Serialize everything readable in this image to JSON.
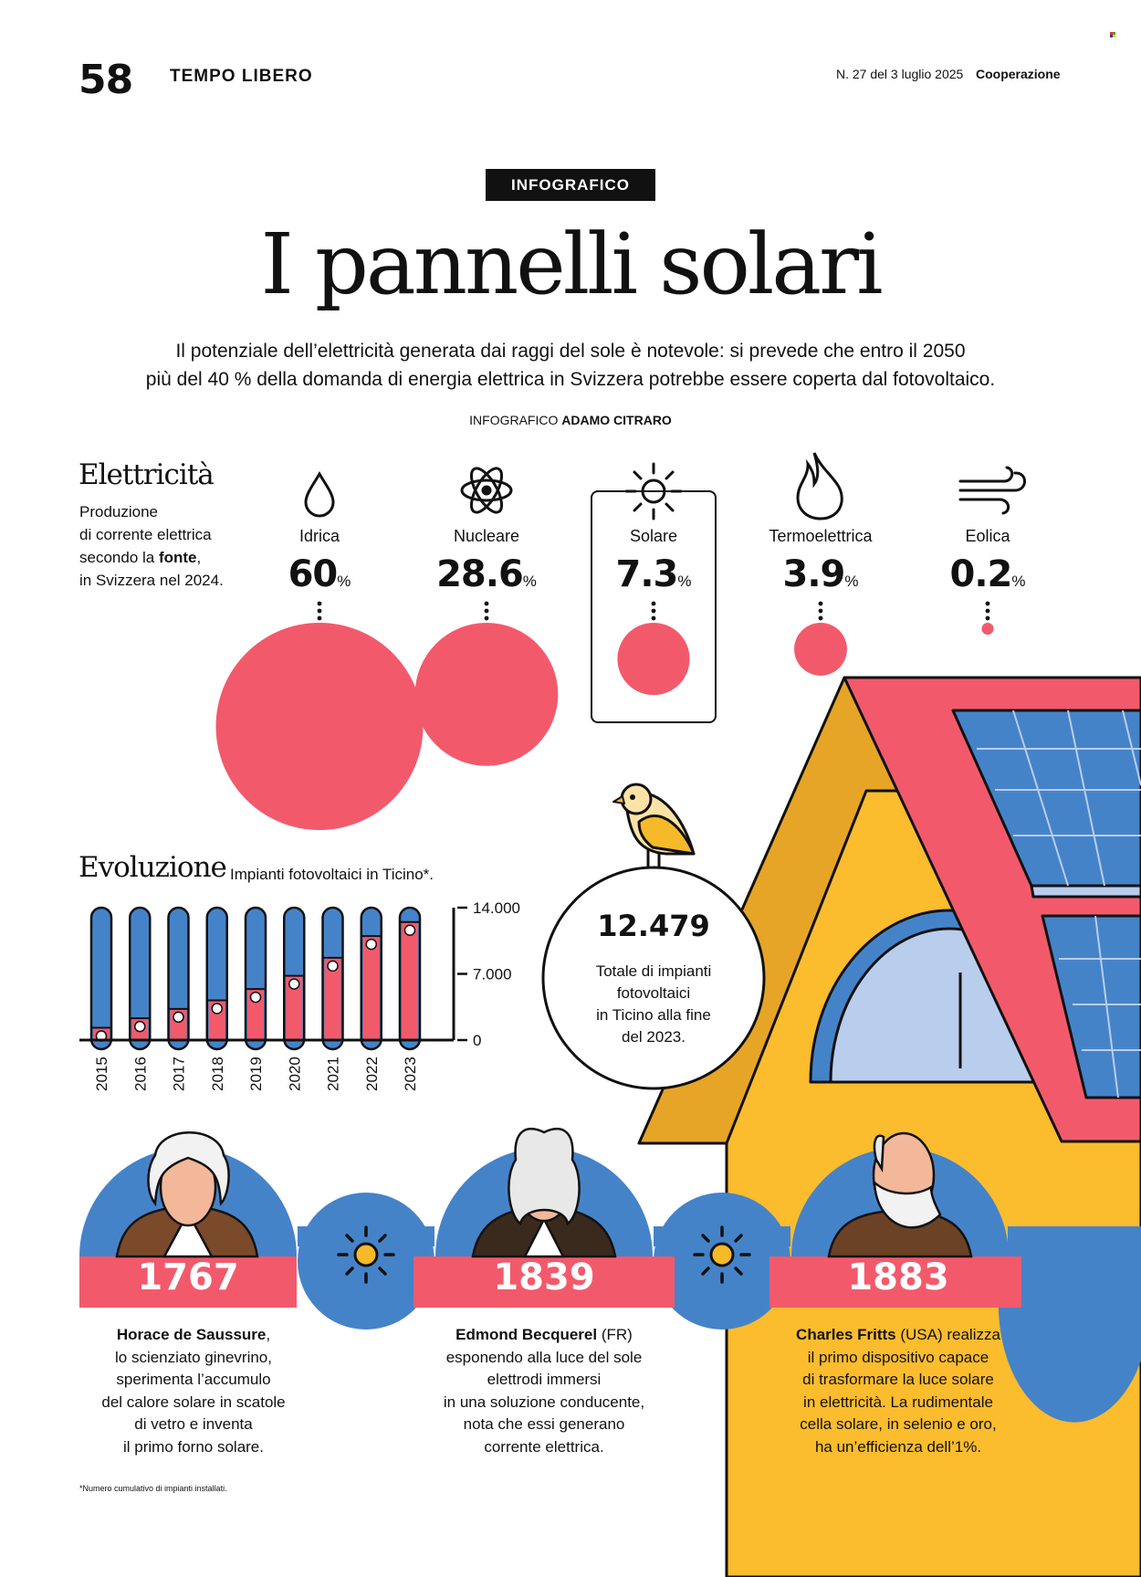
{
  "header": {
    "page_number": "58",
    "section": "TEMPO LIBERO",
    "issue": "N. 27 del 3 luglio 2025",
    "brand": "Cooperazione"
  },
  "tag": "INFOGRAFICO",
  "title": "I pannelli solari",
  "subtitle": {
    "line1": "Il potenziale dell’elettricità generata dai raggi del sole è notevole: si prevede che entro il 2050",
    "line2": "più del 40 % della domanda di energia elettrica in Svizzera potrebbe essere coperta dal fotovoltaico."
  },
  "credit": {
    "prefix": "INFOGRAFICO",
    "author": "ADAMO CITRARO"
  },
  "electricity": {
    "title": "Elettricità",
    "desc1": "Produzione",
    "desc2": "di corrente elettrica",
    "desc3a": "secondo la ",
    "desc3b": "fonte",
    "desc3c": ",",
    "desc4": "in Svizzera nel 2024."
  },
  "colors": {
    "red": "#f25a6c",
    "blue": "#4583c9",
    "light_blue": "#b9cdec",
    "yellow": "#fbbc2d",
    "orange": "#e6a526",
    "dark": "#111111",
    "sun": "#f6b92a"
  },
  "chart_data": [
    {
      "type": "bubble",
      "title": "Elettricità",
      "subtitle": "Produzione di corrente elettrica secondo la fonte, in Svizzera nel 2024.",
      "unit": "%",
      "categories": [
        {
          "label": "Idrica",
          "value": 60,
          "display": "60",
          "icon": "water-drop-icon"
        },
        {
          "label": "Nucleare",
          "value": 28.6,
          "display": "28.6",
          "icon": "atom-icon"
        },
        {
          "label": "Solare",
          "value": 7.3,
          "display": "7.3",
          "icon": "sun-icon",
          "highlighted": true
        },
        {
          "label": "Termoelettrica",
          "value": 3.9,
          "display": "3.9",
          "icon": "flame-icon"
        },
        {
          "label": "Eolica",
          "value": 0.2,
          "display": "0.2",
          "icon": "wind-icon"
        }
      ]
    },
    {
      "type": "bar",
      "title": "Evoluzione",
      "subtitle": "Impianti fotovoltaici in Ticino*.",
      "categories": [
        "2015",
        "2016",
        "2017",
        "2018",
        "2019",
        "2020",
        "2021",
        "2022",
        "2023"
      ],
      "values": [
        1300,
        2300,
        3300,
        4200,
        5400,
        6800,
        8700,
        11000,
        12479
      ],
      "ylim": [
        0,
        14000
      ],
      "yticks": [
        "14.000",
        "7.000",
        "0"
      ],
      "ytick_values": [
        14000,
        7000,
        0
      ]
    }
  ],
  "total": {
    "value": "12.479",
    "line1": "Totale di impianti",
    "line2": "fotovoltaici",
    "line3": "in Ticino alla fine",
    "line4": "del 2023."
  },
  "timeline": [
    {
      "year": "1767",
      "bio_name": "Horace de Saussure",
      "bio_after": ",",
      "bio_lines": [
        "lo scienziato ginevrino,",
        "sperimenta l’accumulo",
        "del calore solare in scatole",
        "di vetro e inventa",
        "il primo forno solare."
      ]
    },
    {
      "year": "1839",
      "bio_name": "Edmond Becquerel",
      "bio_after": " (FR)",
      "bio_lines": [
        "esponendo alla luce del sole",
        "elettrodi immersi",
        "in una soluzione conducente,",
        "nota che essi generano",
        "corrente elettrica."
      ]
    },
    {
      "year": "1883",
      "bio_name": "Charles Fritts",
      "bio_after": " (USA) realizza",
      "bio_lines": [
        "il primo dispositivo capace",
        "di trasformare la luce solare",
        "in elettricità. La rudimentale",
        "cella solare, in selenio e oro,",
        "ha un’efficienza dell’1%."
      ]
    }
  ],
  "footnote": "*Numero cumulativo di impianti installati."
}
